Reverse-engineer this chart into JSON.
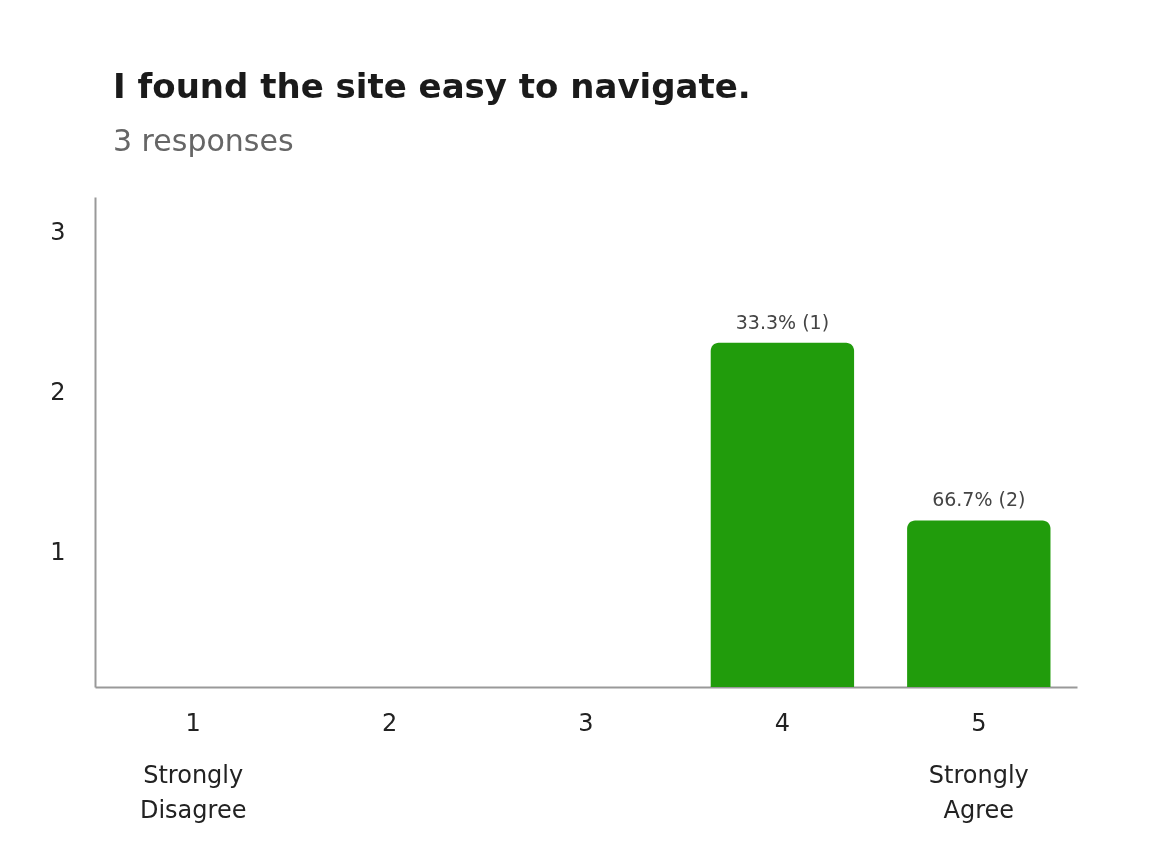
{
  "chart_data": {
    "type": "bar",
    "title": "I found the site easy to navigate.",
    "subtitle": "3 responses",
    "categories": [
      "1",
      "2",
      "3",
      "4",
      "5"
    ],
    "values": [
      null,
      null,
      null,
      2.31,
      1.2
    ],
    "color": "#219c0c",
    "ylim": [
      0.16,
      3.22
    ],
    "yticks": [
      1,
      2,
      3
    ],
    "grid": false,
    "annotations": [
      {
        "text": "33.3% (1)",
        "x": "4",
        "y": 2.31
      },
      {
        "text": "66.7% (2)",
        "x": "5",
        "y": 1.2
      },
      "Strongly Disagree",
      "Strongly Agree"
    ]
  }
}
